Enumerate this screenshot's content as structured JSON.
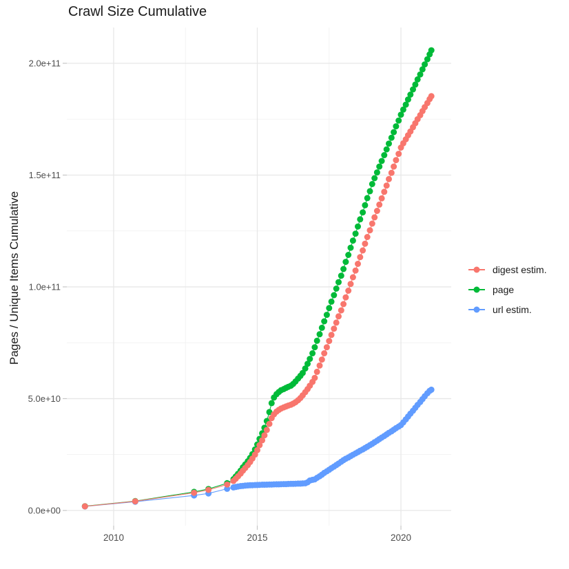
{
  "chart_data": {
    "type": "scatter",
    "title": "Crawl Size Cumulative",
    "xlabel": "",
    "ylabel": "Pages / Unique Items Cumulative",
    "value_unit": 1000000000,
    "xlim": [
      2008.37,
      2021.75
    ],
    "ylim": [
      -6.8,
      216
    ],
    "grid": true,
    "legend_position": "right",
    "x_axis": {
      "major_ticks": [
        2010,
        2015,
        2020
      ],
      "major_labels": [
        "2010",
        "2015",
        "2020"
      ],
      "minor_ticks": [
        2012.5,
        2017.5
      ]
    },
    "y_axis": {
      "major_ticks": [
        0,
        50,
        100,
        150,
        200
      ],
      "major_labels": [
        "0.0e+00",
        "5.0e+10",
        "1.0e+11",
        "1.5e+11",
        "2.0e+11"
      ],
      "minor_ticks": [
        25,
        75,
        125,
        175
      ]
    },
    "colors": {
      "grid_major": "#e7e7e7",
      "grid_minor": "#f1f1f1",
      "tick_mark": "#c6c6c6",
      "tick_label": "#4d4d4d",
      "text": "#1a1a1a",
      "background": "#ffffff"
    },
    "series": [
      {
        "name": "digest estim.",
        "color": "#F8766D",
        "z": 2,
        "points": [
          [
            2009.0,
            1.85
          ],
          [
            2010.75,
            4.1
          ],
          [
            2012.8,
            7.9
          ],
          [
            2013.3,
            9.2
          ],
          [
            2013.95,
            11.6
          ],
          [
            2014.17,
            13.2
          ],
          [
            2014.25,
            14.2
          ],
          [
            2014.33,
            15.3
          ],
          [
            2014.42,
            16.5
          ],
          [
            2014.5,
            17.8
          ],
          [
            2014.58,
            19.0
          ],
          [
            2014.67,
            20.3
          ],
          [
            2014.75,
            21.7
          ],
          [
            2014.83,
            23.2
          ],
          [
            2014.92,
            25.0
          ],
          [
            2015.0,
            27.0
          ],
          [
            2015.08,
            29.2
          ],
          [
            2015.17,
            31.4
          ],
          [
            2015.25,
            33.6
          ],
          [
            2015.33,
            36.0
          ],
          [
            2015.42,
            38.7
          ],
          [
            2015.5,
            41.3
          ],
          [
            2015.58,
            43.0
          ],
          [
            2015.67,
            44.2
          ],
          [
            2015.75,
            45.0
          ],
          [
            2015.83,
            45.6
          ],
          [
            2015.92,
            46.1
          ],
          [
            2016.0,
            46.5
          ],
          [
            2016.08,
            46.9
          ],
          [
            2016.17,
            47.3
          ],
          [
            2016.25,
            47.8
          ],
          [
            2016.33,
            48.4
          ],
          [
            2016.42,
            49.3
          ],
          [
            2016.5,
            50.3
          ],
          [
            2016.58,
            51.5
          ],
          [
            2016.67,
            52.9
          ],
          [
            2016.75,
            54.3
          ],
          [
            2016.83,
            55.8
          ],
          [
            2016.92,
            57.5
          ],
          [
            2017.0,
            59.3
          ],
          [
            2017.08,
            62.0
          ],
          [
            2017.17,
            64.8
          ],
          [
            2017.25,
            67.5
          ],
          [
            2017.33,
            70.3
          ],
          [
            2017.42,
            73.0
          ],
          [
            2017.5,
            75.8
          ],
          [
            2017.58,
            78.5
          ],
          [
            2017.67,
            81.3
          ],
          [
            2017.75,
            84.0
          ],
          [
            2017.83,
            86.8
          ],
          [
            2017.92,
            89.5
          ],
          [
            2018.0,
            92.3
          ],
          [
            2018.08,
            95.3
          ],
          [
            2018.17,
            98.3
          ],
          [
            2018.25,
            101.3
          ],
          [
            2018.33,
            104.3
          ],
          [
            2018.42,
            107.3
          ],
          [
            2018.5,
            110.3
          ],
          [
            2018.58,
            113.3
          ],
          [
            2018.67,
            116.3
          ],
          [
            2018.75,
            119.3
          ],
          [
            2018.83,
            122.3
          ],
          [
            2018.92,
            125.3
          ],
          [
            2019.0,
            128.3
          ],
          [
            2019.08,
            131.1
          ],
          [
            2019.17,
            134.0
          ],
          [
            2019.25,
            136.8
          ],
          [
            2019.33,
            139.6
          ],
          [
            2019.42,
            142.5
          ],
          [
            2019.5,
            145.3
          ],
          [
            2019.58,
            148.2
          ],
          [
            2019.67,
            151.0
          ],
          [
            2019.75,
            153.8
          ],
          [
            2019.83,
            156.7
          ],
          [
            2019.92,
            159.5
          ],
          [
            2020.0,
            162.3
          ],
          [
            2020.08,
            164.2
          ],
          [
            2020.17,
            166.0
          ],
          [
            2020.25,
            167.8
          ],
          [
            2020.33,
            169.5
          ],
          [
            2020.42,
            171.4
          ],
          [
            2020.5,
            173.2
          ],
          [
            2020.58,
            175.0
          ],
          [
            2020.67,
            176.8
          ],
          [
            2020.75,
            178.6
          ],
          [
            2020.83,
            180.4
          ],
          [
            2020.92,
            182.2
          ],
          [
            2021.0,
            184.0
          ],
          [
            2021.06,
            185.3
          ]
        ]
      },
      {
        "name": "page",
        "color": "#00BA38",
        "z": 1,
        "points": [
          [
            2009.0,
            1.9
          ],
          [
            2010.75,
            4.2
          ],
          [
            2012.8,
            8.3
          ],
          [
            2013.3,
            9.6
          ],
          [
            2013.95,
            12.2
          ],
          [
            2014.17,
            14.0
          ],
          [
            2014.25,
            15.2
          ],
          [
            2014.33,
            16.4
          ],
          [
            2014.42,
            17.8
          ],
          [
            2014.5,
            19.3
          ],
          [
            2014.58,
            20.6
          ],
          [
            2014.67,
            22.0
          ],
          [
            2014.75,
            23.5
          ],
          [
            2014.83,
            25.2
          ],
          [
            2014.92,
            27.3
          ],
          [
            2015.0,
            29.5
          ],
          [
            2015.08,
            32.0
          ],
          [
            2015.17,
            34.5
          ],
          [
            2015.25,
            37.0
          ],
          [
            2015.33,
            40.0
          ],
          [
            2015.42,
            44.0
          ],
          [
            2015.5,
            48.0
          ],
          [
            2015.58,
            50.5
          ],
          [
            2015.67,
            52.0
          ],
          [
            2015.75,
            53.0
          ],
          [
            2015.83,
            53.8
          ],
          [
            2015.92,
            54.3
          ],
          [
            2016.0,
            54.8
          ],
          [
            2016.08,
            55.3
          ],
          [
            2016.17,
            55.8
          ],
          [
            2016.25,
            56.6
          ],
          [
            2016.33,
            57.7
          ],
          [
            2016.42,
            59.0
          ],
          [
            2016.5,
            60.2
          ],
          [
            2016.58,
            61.5
          ],
          [
            2016.67,
            63.5
          ],
          [
            2016.75,
            65.6
          ],
          [
            2016.83,
            67.8
          ],
          [
            2016.92,
            70.3
          ],
          [
            2017.0,
            73.0
          ],
          [
            2017.08,
            75.9
          ],
          [
            2017.17,
            78.8
          ],
          [
            2017.25,
            81.7
          ],
          [
            2017.33,
            84.6
          ],
          [
            2017.42,
            87.5
          ],
          [
            2017.5,
            90.5
          ],
          [
            2017.58,
            93.4
          ],
          [
            2017.67,
            96.3
          ],
          [
            2017.75,
            99.2
          ],
          [
            2017.83,
            102.1
          ],
          [
            2017.92,
            105.0
          ],
          [
            2018.0,
            108.0
          ],
          [
            2018.08,
            111.2
          ],
          [
            2018.17,
            114.3
          ],
          [
            2018.25,
            117.5
          ],
          [
            2018.33,
            120.7
          ],
          [
            2018.42,
            123.8
          ],
          [
            2018.5,
            127.0
          ],
          [
            2018.58,
            130.2
          ],
          [
            2018.67,
            133.3
          ],
          [
            2018.75,
            136.5
          ],
          [
            2018.83,
            139.7
          ],
          [
            2018.92,
            142.8
          ],
          [
            2019.0,
            146.0
          ],
          [
            2019.08,
            148.6
          ],
          [
            2019.17,
            151.2
          ],
          [
            2019.25,
            153.8
          ],
          [
            2019.33,
            156.3
          ],
          [
            2019.42,
            158.9
          ],
          [
            2019.5,
            161.5
          ],
          [
            2019.58,
            164.1
          ],
          [
            2019.67,
            166.7
          ],
          [
            2019.75,
            169.2
          ],
          [
            2019.83,
            171.8
          ],
          [
            2019.92,
            174.4
          ],
          [
            2020.0,
            177.0
          ],
          [
            2020.08,
            179.3
          ],
          [
            2020.17,
            181.5
          ],
          [
            2020.25,
            183.8
          ],
          [
            2020.33,
            186.0
          ],
          [
            2020.42,
            188.3
          ],
          [
            2020.5,
            190.5
          ],
          [
            2020.58,
            192.8
          ],
          [
            2020.67,
            195.0
          ],
          [
            2020.75,
            197.3
          ],
          [
            2020.83,
            199.5
          ],
          [
            2020.92,
            201.8
          ],
          [
            2021.0,
            204.0
          ],
          [
            2021.06,
            205.8
          ]
        ]
      },
      {
        "name": "url estim.",
        "color": "#619CFF",
        "z": 0,
        "points": [
          [
            2009.0,
            1.8
          ],
          [
            2010.75,
            3.9
          ],
          [
            2012.8,
            6.7
          ],
          [
            2013.3,
            7.6
          ],
          [
            2013.95,
            9.7
          ],
          [
            2014.17,
            10.3
          ],
          [
            2014.25,
            10.5
          ],
          [
            2014.33,
            10.7
          ],
          [
            2014.42,
            10.9
          ],
          [
            2014.5,
            11.0
          ],
          [
            2014.58,
            11.1
          ],
          [
            2014.67,
            11.2
          ],
          [
            2014.75,
            11.25
          ],
          [
            2014.83,
            11.3
          ],
          [
            2014.92,
            11.35
          ],
          [
            2015.0,
            11.4
          ],
          [
            2015.08,
            11.45
          ],
          [
            2015.17,
            11.5
          ],
          [
            2015.25,
            11.5
          ],
          [
            2015.33,
            11.55
          ],
          [
            2015.42,
            11.6
          ],
          [
            2015.5,
            11.6
          ],
          [
            2015.58,
            11.65
          ],
          [
            2015.67,
            11.7
          ],
          [
            2015.75,
            11.7
          ],
          [
            2015.83,
            11.75
          ],
          [
            2015.92,
            11.8
          ],
          [
            2016.0,
            11.8
          ],
          [
            2016.08,
            11.85
          ],
          [
            2016.17,
            11.9
          ],
          [
            2016.25,
            11.9
          ],
          [
            2016.33,
            11.95
          ],
          [
            2016.42,
            12.0
          ],
          [
            2016.5,
            12.0
          ],
          [
            2016.58,
            12.1
          ],
          [
            2016.67,
            12.15
          ],
          [
            2016.75,
            12.6
          ],
          [
            2016.83,
            13.4
          ],
          [
            2016.92,
            13.7
          ],
          [
            2017.0,
            13.9
          ],
          [
            2017.08,
            14.6
          ],
          [
            2017.17,
            15.3
          ],
          [
            2017.25,
            16.0
          ],
          [
            2017.33,
            16.8
          ],
          [
            2017.42,
            17.5
          ],
          [
            2017.5,
            18.2
          ],
          [
            2017.58,
            18.9
          ],
          [
            2017.67,
            19.6
          ],
          [
            2017.75,
            20.3
          ],
          [
            2017.83,
            21.0
          ],
          [
            2017.92,
            21.8
          ],
          [
            2018.0,
            22.5
          ],
          [
            2018.08,
            23.1
          ],
          [
            2018.17,
            23.7
          ],
          [
            2018.25,
            24.3
          ],
          [
            2018.33,
            24.9
          ],
          [
            2018.42,
            25.5
          ],
          [
            2018.5,
            26.1
          ],
          [
            2018.58,
            26.7
          ],
          [
            2018.67,
            27.3
          ],
          [
            2018.75,
            27.9
          ],
          [
            2018.83,
            28.5
          ],
          [
            2018.92,
            29.2
          ],
          [
            2019.0,
            29.8
          ],
          [
            2019.08,
            30.5
          ],
          [
            2019.17,
            31.2
          ],
          [
            2019.25,
            31.9
          ],
          [
            2019.33,
            32.6
          ],
          [
            2019.42,
            33.3
          ],
          [
            2019.5,
            34.0
          ],
          [
            2019.58,
            34.7
          ],
          [
            2019.67,
            35.4
          ],
          [
            2019.75,
            36.1
          ],
          [
            2019.83,
            36.8
          ],
          [
            2019.92,
            37.5
          ],
          [
            2020.0,
            38.2
          ],
          [
            2020.08,
            39.4
          ],
          [
            2020.17,
            40.7
          ],
          [
            2020.25,
            42.0
          ],
          [
            2020.33,
            43.3
          ],
          [
            2020.42,
            44.6
          ],
          [
            2020.5,
            45.9
          ],
          [
            2020.58,
            47.2
          ],
          [
            2020.67,
            48.5
          ],
          [
            2020.75,
            49.8
          ],
          [
            2020.83,
            51.1
          ],
          [
            2020.92,
            52.4
          ],
          [
            2021.0,
            53.5
          ],
          [
            2021.06,
            54.0
          ]
        ]
      }
    ]
  }
}
